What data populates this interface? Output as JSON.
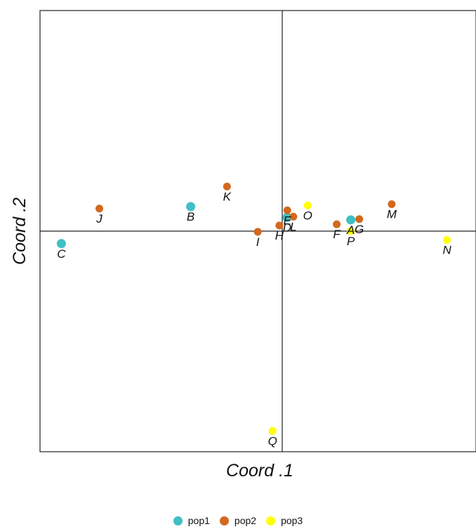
{
  "chart_data": {
    "type": "scatter",
    "xlabel": "Coord .1",
    "ylabel": "Coord .2",
    "xlim": [
      -1.0,
      0.8
    ],
    "ylim": [
      -0.9,
      0.9
    ],
    "grid": false,
    "zero_lines": true,
    "legend_position": "bottom",
    "groups": [
      {
        "name": "pop1",
        "color": "#40BFC4"
      },
      {
        "name": "pop2",
        "color": "#D2691E"
      },
      {
        "name": "pop3",
        "color": "#FFFF00"
      }
    ],
    "points": [
      {
        "label": "A",
        "group": "pop1",
        "x": 0.283,
        "y": 0.046
      },
      {
        "label": "B",
        "group": "pop1",
        "x": -0.378,
        "y": 0.1
      },
      {
        "label": "C",
        "group": "pop1",
        "x": -0.912,
        "y": -0.051
      },
      {
        "label": "D",
        "group": "pop1",
        "x": 0.02,
        "y": 0.056
      },
      {
        "label": "E",
        "group": "pop2",
        "x": 0.021,
        "y": 0.085
      },
      {
        "label": "F",
        "group": "pop2",
        "x": 0.225,
        "y": 0.028
      },
      {
        "label": "G",
        "group": "pop2",
        "x": 0.318,
        "y": 0.049
      },
      {
        "label": "H",
        "group": "pop2",
        "x": -0.012,
        "y": 0.023
      },
      {
        "label": "I",
        "group": "pop2",
        "x": -0.101,
        "y": -0.003
      },
      {
        "label": "J",
        "group": "pop2",
        "x": -0.755,
        "y": 0.092
      },
      {
        "label": "K",
        "group": "pop2",
        "x": -0.228,
        "y": 0.182
      },
      {
        "label": "L",
        "group": "pop2",
        "x": 0.046,
        "y": 0.059
      },
      {
        "label": "M",
        "group": "pop2",
        "x": 0.452,
        "y": 0.11
      },
      {
        "label": "N",
        "group": "pop3",
        "x": 0.68,
        "y": -0.036
      },
      {
        "label": "O",
        "group": "pop3",
        "x": 0.105,
        "y": 0.105
      },
      {
        "label": "P",
        "group": "pop3",
        "x": 0.283,
        "y": 0.0
      },
      {
        "label": "Q",
        "group": "pop3",
        "x": -0.04,
        "y": -0.815
      }
    ]
  }
}
